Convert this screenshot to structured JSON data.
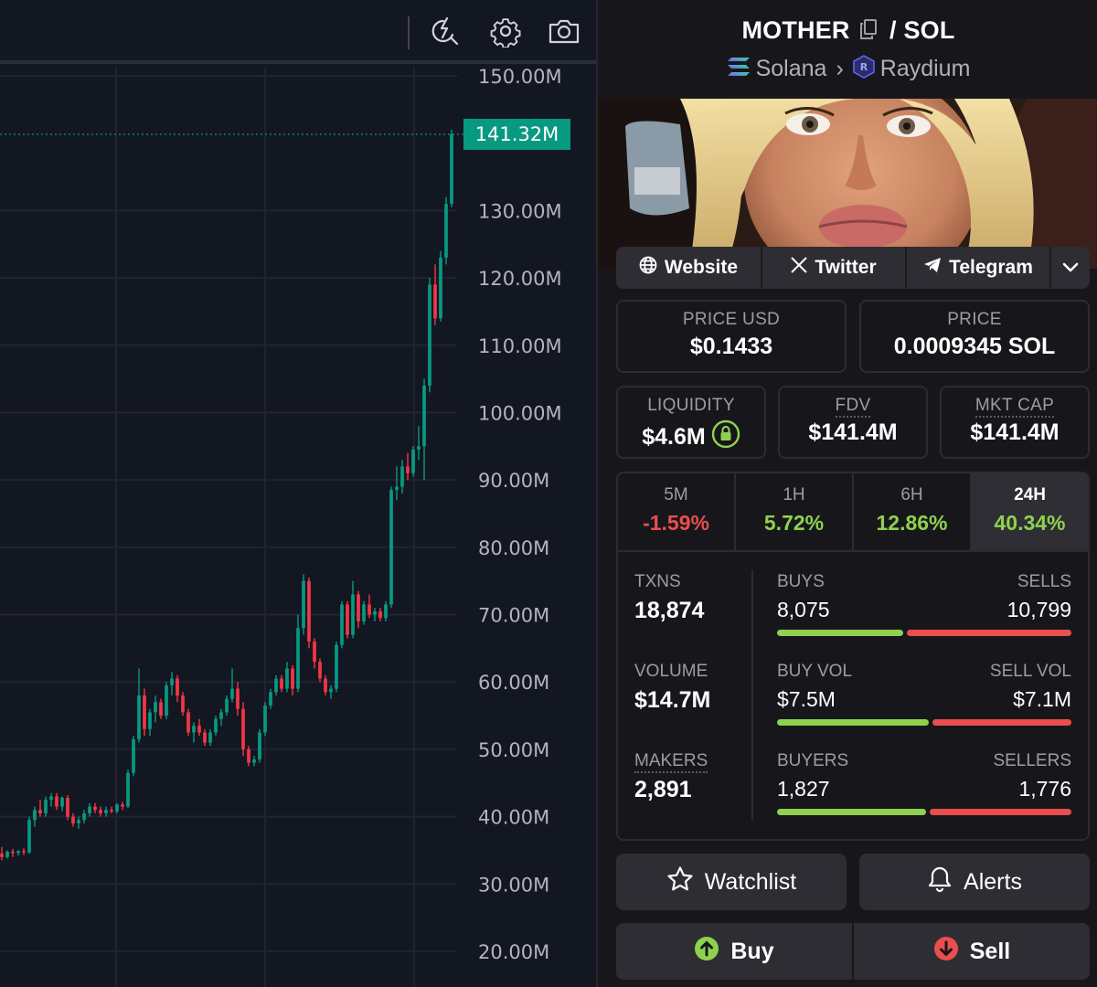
{
  "toolbar": {
    "icons": [
      "indicators-lightning-icon",
      "settings-gear-icon",
      "camera-snapshot-icon"
    ]
  },
  "chart_data": {
    "type": "candlestick",
    "y_axis_ticks": [
      "150.00M",
      "130.00M",
      "120.00M",
      "110.00M",
      "100.00M",
      "90.00M",
      "80.00M",
      "70.00M",
      "60.00M",
      "50.00M",
      "40.00M",
      "30.00M",
      "20.00M"
    ],
    "ylim": [
      17,
      153
    ],
    "current_price_label": "141.32M",
    "current_price_value": 141.32,
    "up_color": "#089981",
    "down_color": "#f23645",
    "candles": [
      {
        "o": 34.5,
        "h": 35.5,
        "l": 33.5,
        "c": 34.0
      },
      {
        "o": 34.0,
        "h": 35.0,
        "l": 33.8,
        "c": 34.8
      },
      {
        "o": 34.8,
        "h": 35.2,
        "l": 34.0,
        "c": 34.6
      },
      {
        "o": 34.6,
        "h": 35.0,
        "l": 34.2,
        "c": 34.9
      },
      {
        "o": 34.9,
        "h": 35.3,
        "l": 34.3,
        "c": 34.7
      },
      {
        "o": 34.7,
        "h": 40.0,
        "l": 34.5,
        "c": 39.5
      },
      {
        "o": 39.5,
        "h": 41.5,
        "l": 38.5,
        "c": 41.0
      },
      {
        "o": 41.0,
        "h": 42.5,
        "l": 40.0,
        "c": 40.5
      },
      {
        "o": 40.5,
        "h": 43.0,
        "l": 40.0,
        "c": 42.5
      },
      {
        "o": 42.5,
        "h": 43.5,
        "l": 41.5,
        "c": 43.0
      },
      {
        "o": 43.0,
        "h": 43.5,
        "l": 41.0,
        "c": 41.5
      },
      {
        "o": 41.5,
        "h": 43.0,
        "l": 40.8,
        "c": 42.8
      },
      {
        "o": 42.8,
        "h": 43.2,
        "l": 39.5,
        "c": 40.0
      },
      {
        "o": 40.0,
        "h": 40.5,
        "l": 38.5,
        "c": 39.0
      },
      {
        "o": 39.0,
        "h": 40.0,
        "l": 38.2,
        "c": 39.5
      },
      {
        "o": 39.5,
        "h": 41.0,
        "l": 39.0,
        "c": 40.5
      },
      {
        "o": 40.5,
        "h": 42.0,
        "l": 40.0,
        "c": 41.5
      },
      {
        "o": 41.5,
        "h": 42.0,
        "l": 40.5,
        "c": 41.0
      },
      {
        "o": 41.0,
        "h": 41.5,
        "l": 40.0,
        "c": 40.5
      },
      {
        "o": 40.5,
        "h": 41.5,
        "l": 40.0,
        "c": 41.0
      },
      {
        "o": 41.0,
        "h": 41.5,
        "l": 40.5,
        "c": 40.8
      },
      {
        "o": 40.8,
        "h": 42.0,
        "l": 40.5,
        "c": 41.8
      },
      {
        "o": 41.8,
        "h": 42.2,
        "l": 41.0,
        "c": 41.5
      },
      {
        "o": 41.5,
        "h": 47.0,
        "l": 41.3,
        "c": 46.5
      },
      {
        "o": 46.5,
        "h": 52.0,
        "l": 46.0,
        "c": 51.5
      },
      {
        "o": 51.5,
        "h": 62.0,
        "l": 51.0,
        "c": 58.0
      },
      {
        "o": 58.0,
        "h": 59.0,
        "l": 52.0,
        "c": 53.0
      },
      {
        "o": 53.0,
        "h": 56.0,
        "l": 52.0,
        "c": 55.5
      },
      {
        "o": 55.5,
        "h": 58.0,
        "l": 54.0,
        "c": 57.0
      },
      {
        "o": 57.0,
        "h": 57.5,
        "l": 54.5,
        "c": 55.0
      },
      {
        "o": 55.0,
        "h": 60.0,
        "l": 54.5,
        "c": 59.5
      },
      {
        "o": 59.5,
        "h": 61.5,
        "l": 58.0,
        "c": 60.5
      },
      {
        "o": 60.5,
        "h": 61.0,
        "l": 57.0,
        "c": 58.0
      },
      {
        "o": 58.0,
        "h": 58.5,
        "l": 55.0,
        "c": 55.5
      },
      {
        "o": 55.5,
        "h": 56.0,
        "l": 52.0,
        "c": 52.5
      },
      {
        "o": 52.5,
        "h": 54.0,
        "l": 51.0,
        "c": 53.5
      },
      {
        "o": 53.5,
        "h": 54.5,
        "l": 52.0,
        "c": 52.5
      },
      {
        "o": 52.5,
        "h": 53.0,
        "l": 50.5,
        "c": 51.0
      },
      {
        "o": 51.0,
        "h": 53.0,
        "l": 50.5,
        "c": 52.5
      },
      {
        "o": 52.5,
        "h": 55.0,
        "l": 52.0,
        "c": 54.5
      },
      {
        "o": 54.5,
        "h": 56.0,
        "l": 53.5,
        "c": 55.5
      },
      {
        "o": 55.5,
        "h": 58.0,
        "l": 55.0,
        "c": 57.5
      },
      {
        "o": 57.5,
        "h": 62.0,
        "l": 57.0,
        "c": 59.0
      },
      {
        "o": 59.0,
        "h": 60.0,
        "l": 55.0,
        "c": 56.0
      },
      {
        "o": 56.0,
        "h": 57.0,
        "l": 49.0,
        "c": 50.0
      },
      {
        "o": 50.0,
        "h": 50.5,
        "l": 47.5,
        "c": 48.0
      },
      {
        "o": 48.0,
        "h": 49.0,
        "l": 47.5,
        "c": 48.5
      },
      {
        "o": 48.5,
        "h": 53.0,
        "l": 48.0,
        "c": 52.5
      },
      {
        "o": 52.5,
        "h": 57.0,
        "l": 52.0,
        "c": 56.5
      },
      {
        "o": 56.5,
        "h": 59.0,
        "l": 56.0,
        "c": 58.5
      },
      {
        "o": 58.5,
        "h": 61.0,
        "l": 58.0,
        "c": 60.5
      },
      {
        "o": 60.5,
        "h": 61.0,
        "l": 58.5,
        "c": 59.0
      },
      {
        "o": 59.0,
        "h": 63.0,
        "l": 58.5,
        "c": 62.0
      },
      {
        "o": 62.0,
        "h": 62.5,
        "l": 58.0,
        "c": 59.0
      },
      {
        "o": 59.0,
        "h": 70.0,
        "l": 58.5,
        "c": 68.0
      },
      {
        "o": 68.0,
        "h": 76.0,
        "l": 67.0,
        "c": 75.0
      },
      {
        "o": 75.0,
        "h": 75.5,
        "l": 65.0,
        "c": 66.0
      },
      {
        "o": 66.0,
        "h": 66.5,
        "l": 62.0,
        "c": 63.0
      },
      {
        "o": 63.0,
        "h": 63.5,
        "l": 60.0,
        "c": 60.5
      },
      {
        "o": 60.5,
        "h": 61.0,
        "l": 58.0,
        "c": 58.5
      },
      {
        "o": 58.5,
        "h": 59.5,
        "l": 57.5,
        "c": 59.0
      },
      {
        "o": 59.0,
        "h": 66.0,
        "l": 58.5,
        "c": 65.5
      },
      {
        "o": 65.5,
        "h": 72.0,
        "l": 65.0,
        "c": 71.5
      },
      {
        "o": 71.5,
        "h": 72.0,
        "l": 66.5,
        "c": 67.0
      },
      {
        "o": 67.0,
        "h": 75.0,
        "l": 66.5,
        "c": 73.0
      },
      {
        "o": 73.0,
        "h": 73.5,
        "l": 68.0,
        "c": 69.0
      },
      {
        "o": 69.0,
        "h": 72.0,
        "l": 68.5,
        "c": 71.5
      },
      {
        "o": 71.5,
        "h": 73.0,
        "l": 69.5,
        "c": 70.0
      },
      {
        "o": 70.0,
        "h": 71.0,
        "l": 69.0,
        "c": 70.5
      },
      {
        "o": 70.5,
        "h": 71.0,
        "l": 69.0,
        "c": 69.5
      },
      {
        "o": 69.5,
        "h": 72.0,
        "l": 69.0,
        "c": 71.5
      },
      {
        "o": 71.5,
        "h": 89.0,
        "l": 71.0,
        "c": 88.5
      },
      {
        "o": 88.5,
        "h": 92.0,
        "l": 87.0,
        "c": 89.0
      },
      {
        "o": 89.0,
        "h": 93.0,
        "l": 88.0,
        "c": 92.0
      },
      {
        "o": 92.0,
        "h": 94.0,
        "l": 90.0,
        "c": 91.0
      },
      {
        "o": 91.0,
        "h": 95.0,
        "l": 90.5,
        "c": 94.5
      },
      {
        "o": 94.5,
        "h": 98.0,
        "l": 93.0,
        "c": 95.0
      },
      {
        "o": 95.0,
        "h": 105.0,
        "l": 90.0,
        "c": 104.0
      },
      {
        "o": 104.0,
        "h": 120.0,
        "l": 103.0,
        "c": 119.0
      },
      {
        "o": 119.0,
        "h": 122.0,
        "l": 113.0,
        "c": 114.0
      },
      {
        "o": 114.0,
        "h": 124.0,
        "l": 113.5,
        "c": 123.0
      },
      {
        "o": 123.0,
        "h": 132.0,
        "l": 122.0,
        "c": 131.0
      },
      {
        "o": 131.0,
        "h": 142.0,
        "l": 130.5,
        "c": 141.32
      }
    ]
  },
  "pair": {
    "base": "MOTHER",
    "separator": "/",
    "quote": "SOL",
    "chain": "Solana",
    "dex": "Raydium"
  },
  "links": {
    "website": "Website",
    "twitter": "Twitter",
    "telegram": "Telegram"
  },
  "stats": {
    "price_usd_label": "PRICE USD",
    "price_usd": "$0.1433",
    "price_label": "PRICE",
    "price_sol": "0.0009345 SOL",
    "liquidity_label": "LIQUIDITY",
    "liquidity": "$4.6M",
    "fdv_label": "FDV",
    "fdv": "$141.4M",
    "mkt_cap_label": "MKT CAP",
    "mkt_cap": "$141.4M"
  },
  "timeframes": [
    {
      "label": "5M",
      "change": "-1.59%",
      "direction": "down"
    },
    {
      "label": "1H",
      "change": "5.72%",
      "direction": "up"
    },
    {
      "label": "6H",
      "change": "12.86%",
      "direction": "up"
    },
    {
      "label": "24H",
      "change": "40.34%",
      "direction": "up",
      "selected": true
    }
  ],
  "activity": {
    "txns_label": "TXNS",
    "txns": "18,874",
    "volume_label": "VOLUME",
    "volume": "$14.7M",
    "makers_label": "MAKERS",
    "makers": "2,891",
    "buys_label": "BUYS",
    "buys": "8,075",
    "sells_label": "SELLS",
    "sells": "10,799",
    "buy_vol_label": "BUY VOL",
    "buy_vol": "$7.5M",
    "sell_vol_label": "SELL VOL",
    "sell_vol": "$7.1M",
    "buyers_label": "BUYERS",
    "buyers": "1,827",
    "sellers_label": "SELLERS",
    "sellers": "1,776",
    "buy_ratio_txns": 0.428,
    "buy_ratio_vol": 0.514,
    "buy_ratio_makers": 0.507
  },
  "actions": {
    "watchlist": "Watchlist",
    "alerts": "Alerts",
    "buy": "Buy",
    "sell": "Sell"
  },
  "colors": {
    "positive": "#8fd14f",
    "negative": "#ea4e4e",
    "candle_up": "#089981",
    "candle_down": "#f23645"
  }
}
